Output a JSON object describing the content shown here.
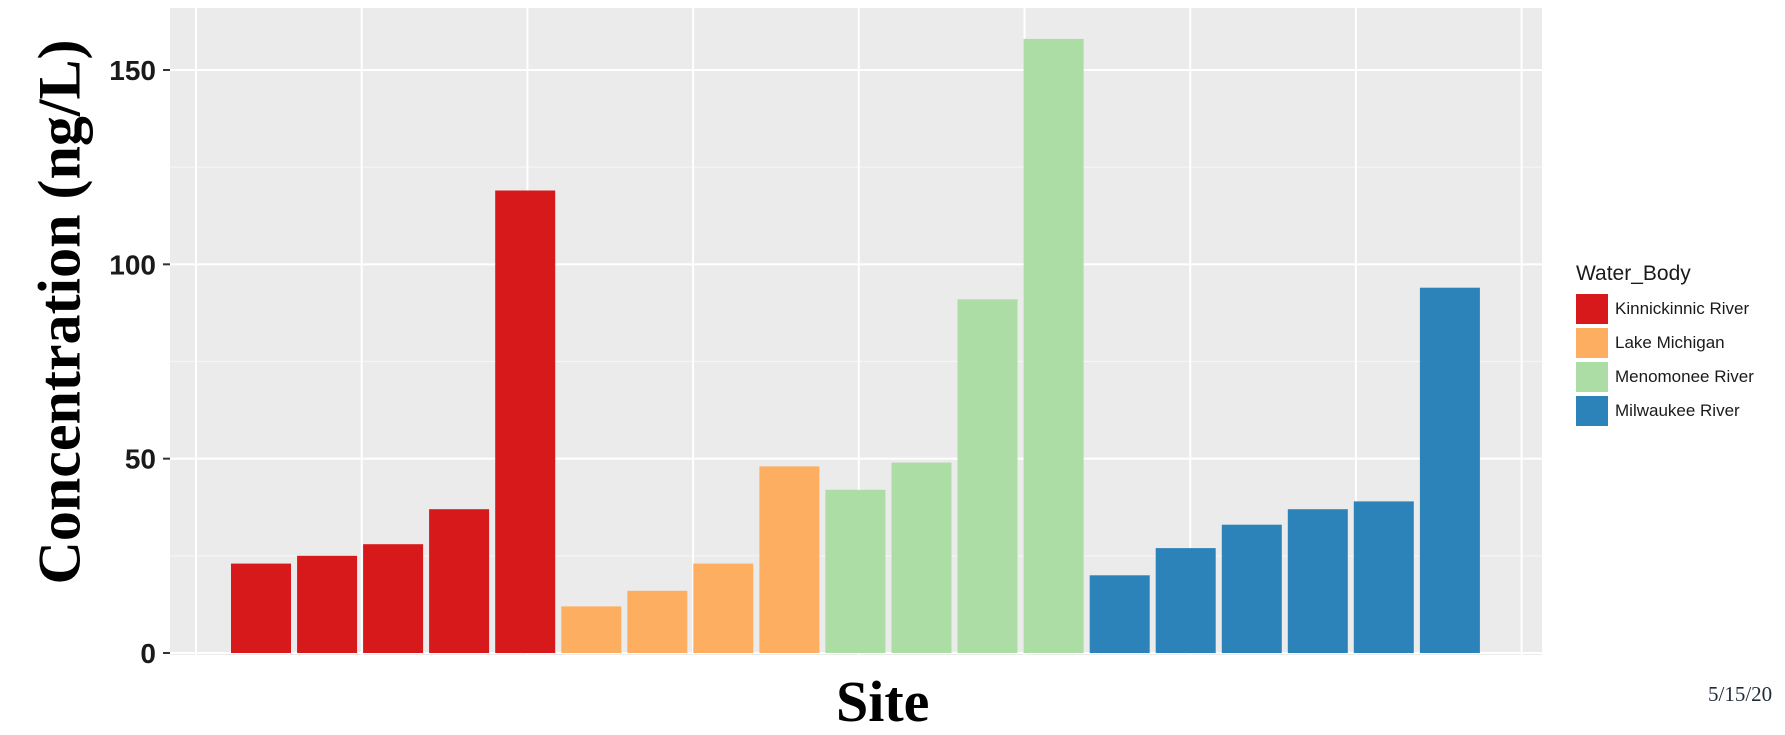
{
  "chart_data": {
    "type": "bar",
    "title": "",
    "xlabel": "Site",
    "ylabel": "Concentration (ng/L)",
    "ylim": [
      0,
      165
    ],
    "yticks": [
      0,
      50,
      100,
      150
    ],
    "grid": true,
    "legend_title": "Water_Body",
    "legend_position": "right",
    "groups": [
      {
        "name": "Kinnickinnic River",
        "color": "#d7191c",
        "values": [
          23,
          25,
          28,
          37,
          119
        ]
      },
      {
        "name": "Lake Michigan",
        "color": "#fdae61",
        "values": [
          12,
          16,
          23,
          48
        ]
      },
      {
        "name": "Menomonee River",
        "color": "#abdda4",
        "values": [
          42,
          49,
          91,
          158
        ]
      },
      {
        "name": "Milwaukee River",
        "color": "#2b83ba",
        "values": [
          20,
          27,
          33,
          37,
          39,
          94
        ]
      }
    ]
  },
  "footer": {
    "date": "5/15/20"
  }
}
